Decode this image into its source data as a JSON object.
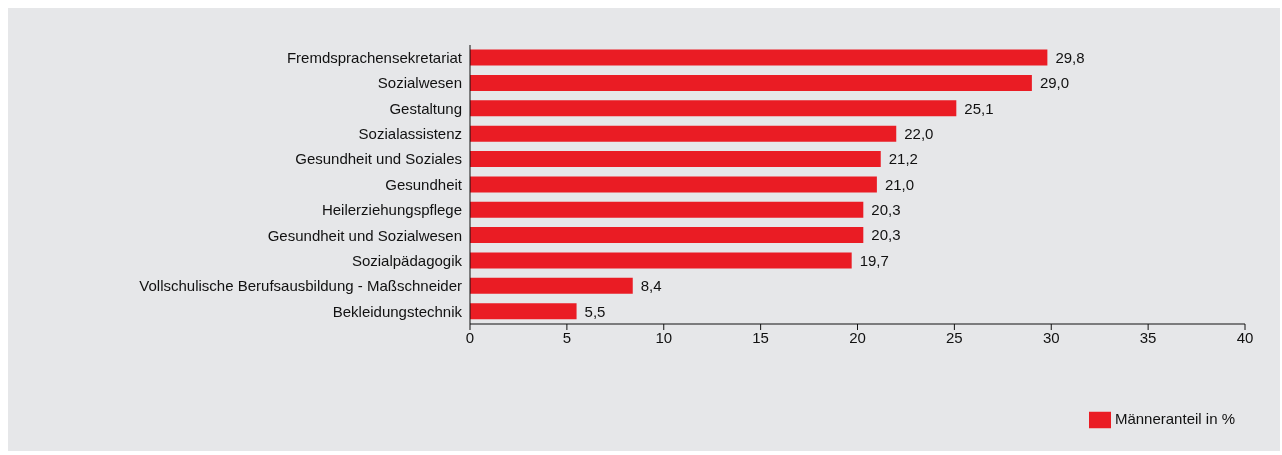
{
  "chart_data": {
    "type": "bar",
    "orientation": "horizontal",
    "categories": [
      "Fremdsprachensekretariat",
      "Sozialwesen",
      "Gestaltung",
      "Sozialassistenz",
      "Gesundheit und Soziales",
      "Gesundheit",
      "Heilerziehungspflege",
      "Gesundheit und Sozialwesen",
      "Sozialpädagogik",
      "Vollschulische Berufsausbildung - Maßschneider",
      "Bekleidungstechnik"
    ],
    "series": [
      {
        "name": "Männeranteil in %",
        "color": "#ea1c24",
        "values": [
          29.8,
          29.0,
          25.1,
          22.0,
          21.2,
          21.0,
          20.3,
          20.3,
          19.7,
          8.4,
          5.5
        ],
        "value_labels": [
          "29,8",
          "29,0",
          "25,1",
          "22,0",
          "21,2",
          "21,0",
          "20,3",
          "20,3",
          "19,7",
          "8,4",
          "5,5"
        ]
      }
    ],
    "xlim": [
      0,
      40
    ],
    "xticks": [
      0,
      5,
      10,
      15,
      20,
      25,
      30,
      35,
      40
    ],
    "legend": "bottom right"
  }
}
